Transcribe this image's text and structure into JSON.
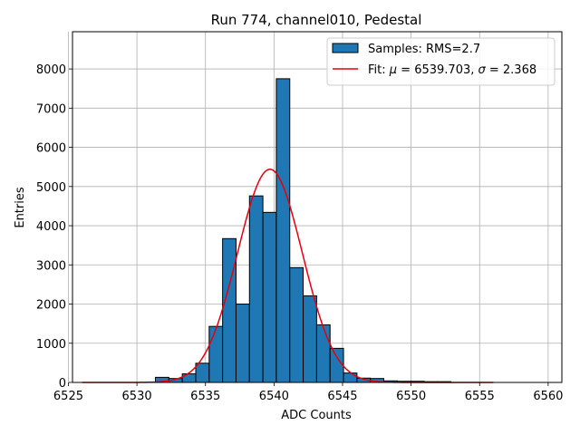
{
  "chart_data": {
    "type": "histogram",
    "title": "Run 774, channel010, Pedestal",
    "xlabel": "ADC Counts",
    "ylabel": "Entries",
    "xlim": [
      6525.3,
      6561.0
    ],
    "ylim": [
      0,
      8950
    ],
    "grid": true,
    "xticks": [
      6525,
      6530,
      6535,
      6540,
      6545,
      6550,
      6555,
      6560
    ],
    "yticks": [
      0,
      1000,
      2000,
      3000,
      4000,
      5000,
      6000,
      7000,
      8000
    ],
    "histogram": {
      "name": "Samples: RMS=2.7",
      "bin_width": 0.98,
      "color": "#1f77b4",
      "bins": [
        {
          "start": 6531.35,
          "value": 130
        },
        {
          "start": 6532.33,
          "value": 100
        },
        {
          "start": 6533.31,
          "value": 220
        },
        {
          "start": 6534.29,
          "value": 490
        },
        {
          "start": 6535.27,
          "value": 1430
        },
        {
          "start": 6536.25,
          "value": 3670
        },
        {
          "start": 6537.23,
          "value": 2000
        },
        {
          "start": 6538.21,
          "value": 4760
        },
        {
          "start": 6539.19,
          "value": 4340
        },
        {
          "start": 6540.17,
          "value": 7750
        },
        {
          "start": 6541.15,
          "value": 2930
        },
        {
          "start": 6542.13,
          "value": 2210
        },
        {
          "start": 6543.11,
          "value": 1470
        },
        {
          "start": 6544.09,
          "value": 870
        },
        {
          "start": 6545.07,
          "value": 240
        },
        {
          "start": 6546.05,
          "value": 110
        },
        {
          "start": 6547.03,
          "value": 100
        },
        {
          "start": 6548.01,
          "value": 40
        },
        {
          "start": 6548.99,
          "value": 30
        },
        {
          "start": 6549.97,
          "value": 30
        },
        {
          "start": 6550.95,
          "value": 20
        },
        {
          "start": 6551.93,
          "value": 20
        }
      ]
    },
    "fit": {
      "name": "Fit: μ = 6539.703, σ = 2.368",
      "color": "#e8000b",
      "mu": 6539.703,
      "sigma": 2.368,
      "amplitude": 5440,
      "x_range": [
        6526.0,
        6556.0
      ]
    },
    "legend": {
      "location": "top-right",
      "entries": [
        {
          "kind": "patch",
          "prefix": "Samples: RMS=2.7",
          "mu_label": "",
          "mid": "",
          "sigma_label": "",
          "suffix": ""
        },
        {
          "kind": "line",
          "prefix": "Fit: ",
          "mu_label": "μ",
          "mid": " = 6539.703, ",
          "sigma_label": "σ",
          "suffix": " = 2.368"
        }
      ]
    }
  }
}
